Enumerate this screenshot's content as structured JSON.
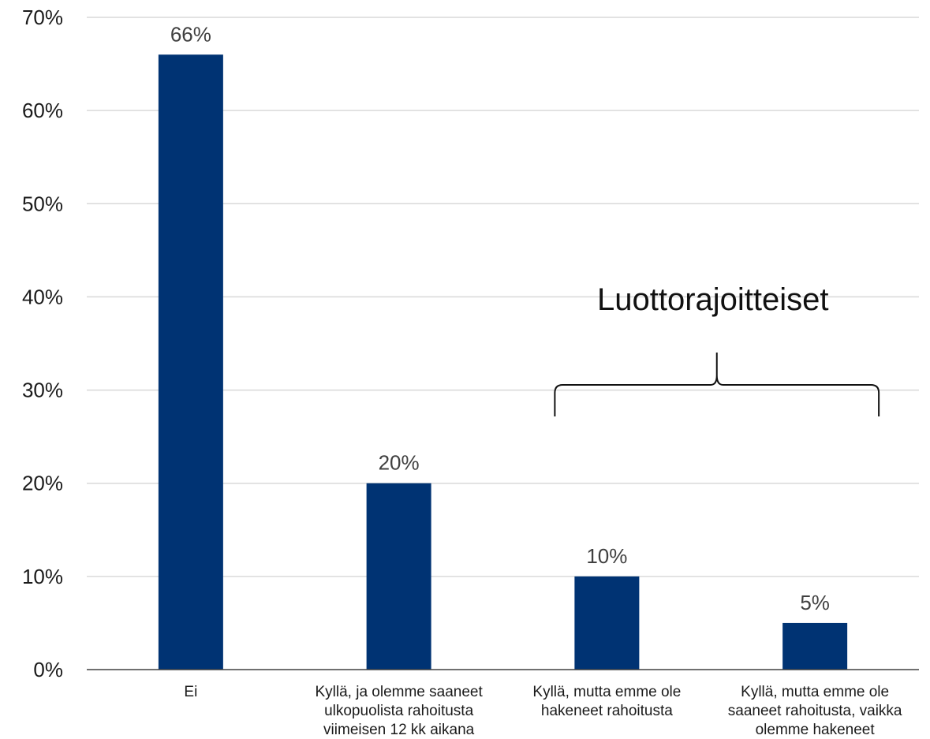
{
  "chart_data": {
    "type": "bar",
    "categories": [
      [
        "Ei"
      ],
      [
        "Kyllä, ja olemme saaneet",
        "ulkopuolista rahoitusta",
        "viimeisen 12 kk aikana"
      ],
      [
        "Kyllä, mutta emme ole",
        "hakeneet rahoitusta"
      ],
      [
        "Kyllä, mutta emme ole",
        "saaneet rahoitusta, vaikka",
        "olemme hakeneet"
      ]
    ],
    "values": [
      66,
      20,
      10,
      5
    ],
    "data_labels": [
      "66%",
      "20%",
      "10%",
      "5%"
    ],
    "y_ticks": [
      0,
      10,
      20,
      30,
      40,
      50,
      60,
      70
    ],
    "y_tick_labels": [
      "0%",
      "10%",
      "20%",
      "30%",
      "40%",
      "50%",
      "60%",
      "70%"
    ],
    "ylim": [
      0,
      70
    ],
    "grid": true,
    "bar_color": "#003373",
    "annotation": {
      "text": "Luottorajoitteiset",
      "spans_categories": [
        2,
        3
      ]
    }
  }
}
